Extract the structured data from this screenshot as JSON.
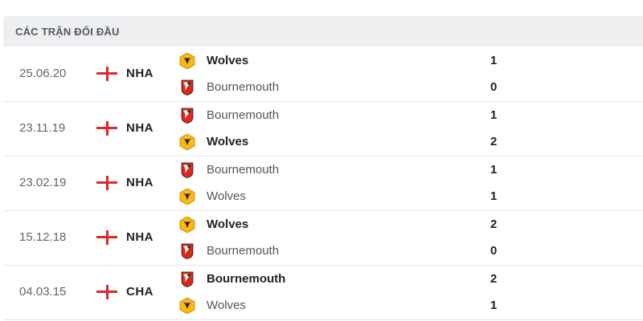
{
  "header": {
    "title": "CÁC TRẬN ĐỐI ĐẦU"
  },
  "colors": {
    "wolves": "#fdb913",
    "bournemouth": "#da291c",
    "flag_red": "#e0262b"
  },
  "matches": [
    {
      "date": "25.06.20",
      "flag": "england-flag-icon",
      "competition": "NHA",
      "teams": [
        {
          "name": "Wolves",
          "score": "1",
          "winner": true,
          "logo": "wolves"
        },
        {
          "name": "Bournemouth",
          "score": "0",
          "winner": false,
          "logo": "bournemouth"
        }
      ]
    },
    {
      "date": "23.11.19",
      "flag": "england-flag-icon",
      "competition": "NHA",
      "teams": [
        {
          "name": "Bournemouth",
          "score": "1",
          "winner": false,
          "logo": "bournemouth"
        },
        {
          "name": "Wolves",
          "score": "2",
          "winner": true,
          "logo": "wolves"
        }
      ]
    },
    {
      "date": "23.02.19",
      "flag": "england-flag-icon",
      "competition": "NHA",
      "teams": [
        {
          "name": "Bournemouth",
          "score": "1",
          "winner": false,
          "logo": "bournemouth"
        },
        {
          "name": "Wolves",
          "score": "1",
          "winner": false,
          "logo": "wolves"
        }
      ]
    },
    {
      "date": "15.12.18",
      "flag": "england-flag-icon",
      "competition": "NHA",
      "teams": [
        {
          "name": "Wolves",
          "score": "2",
          "winner": true,
          "logo": "wolves"
        },
        {
          "name": "Bournemouth",
          "score": "0",
          "winner": false,
          "logo": "bournemouth"
        }
      ]
    },
    {
      "date": "04.03.15",
      "flag": "england-flag-icon",
      "competition": "CHA",
      "teams": [
        {
          "name": "Bournemouth",
          "score": "2",
          "winner": true,
          "logo": "bournemouth"
        },
        {
          "name": "Wolves",
          "score": "1",
          "winner": false,
          "logo": "wolves"
        }
      ]
    }
  ]
}
